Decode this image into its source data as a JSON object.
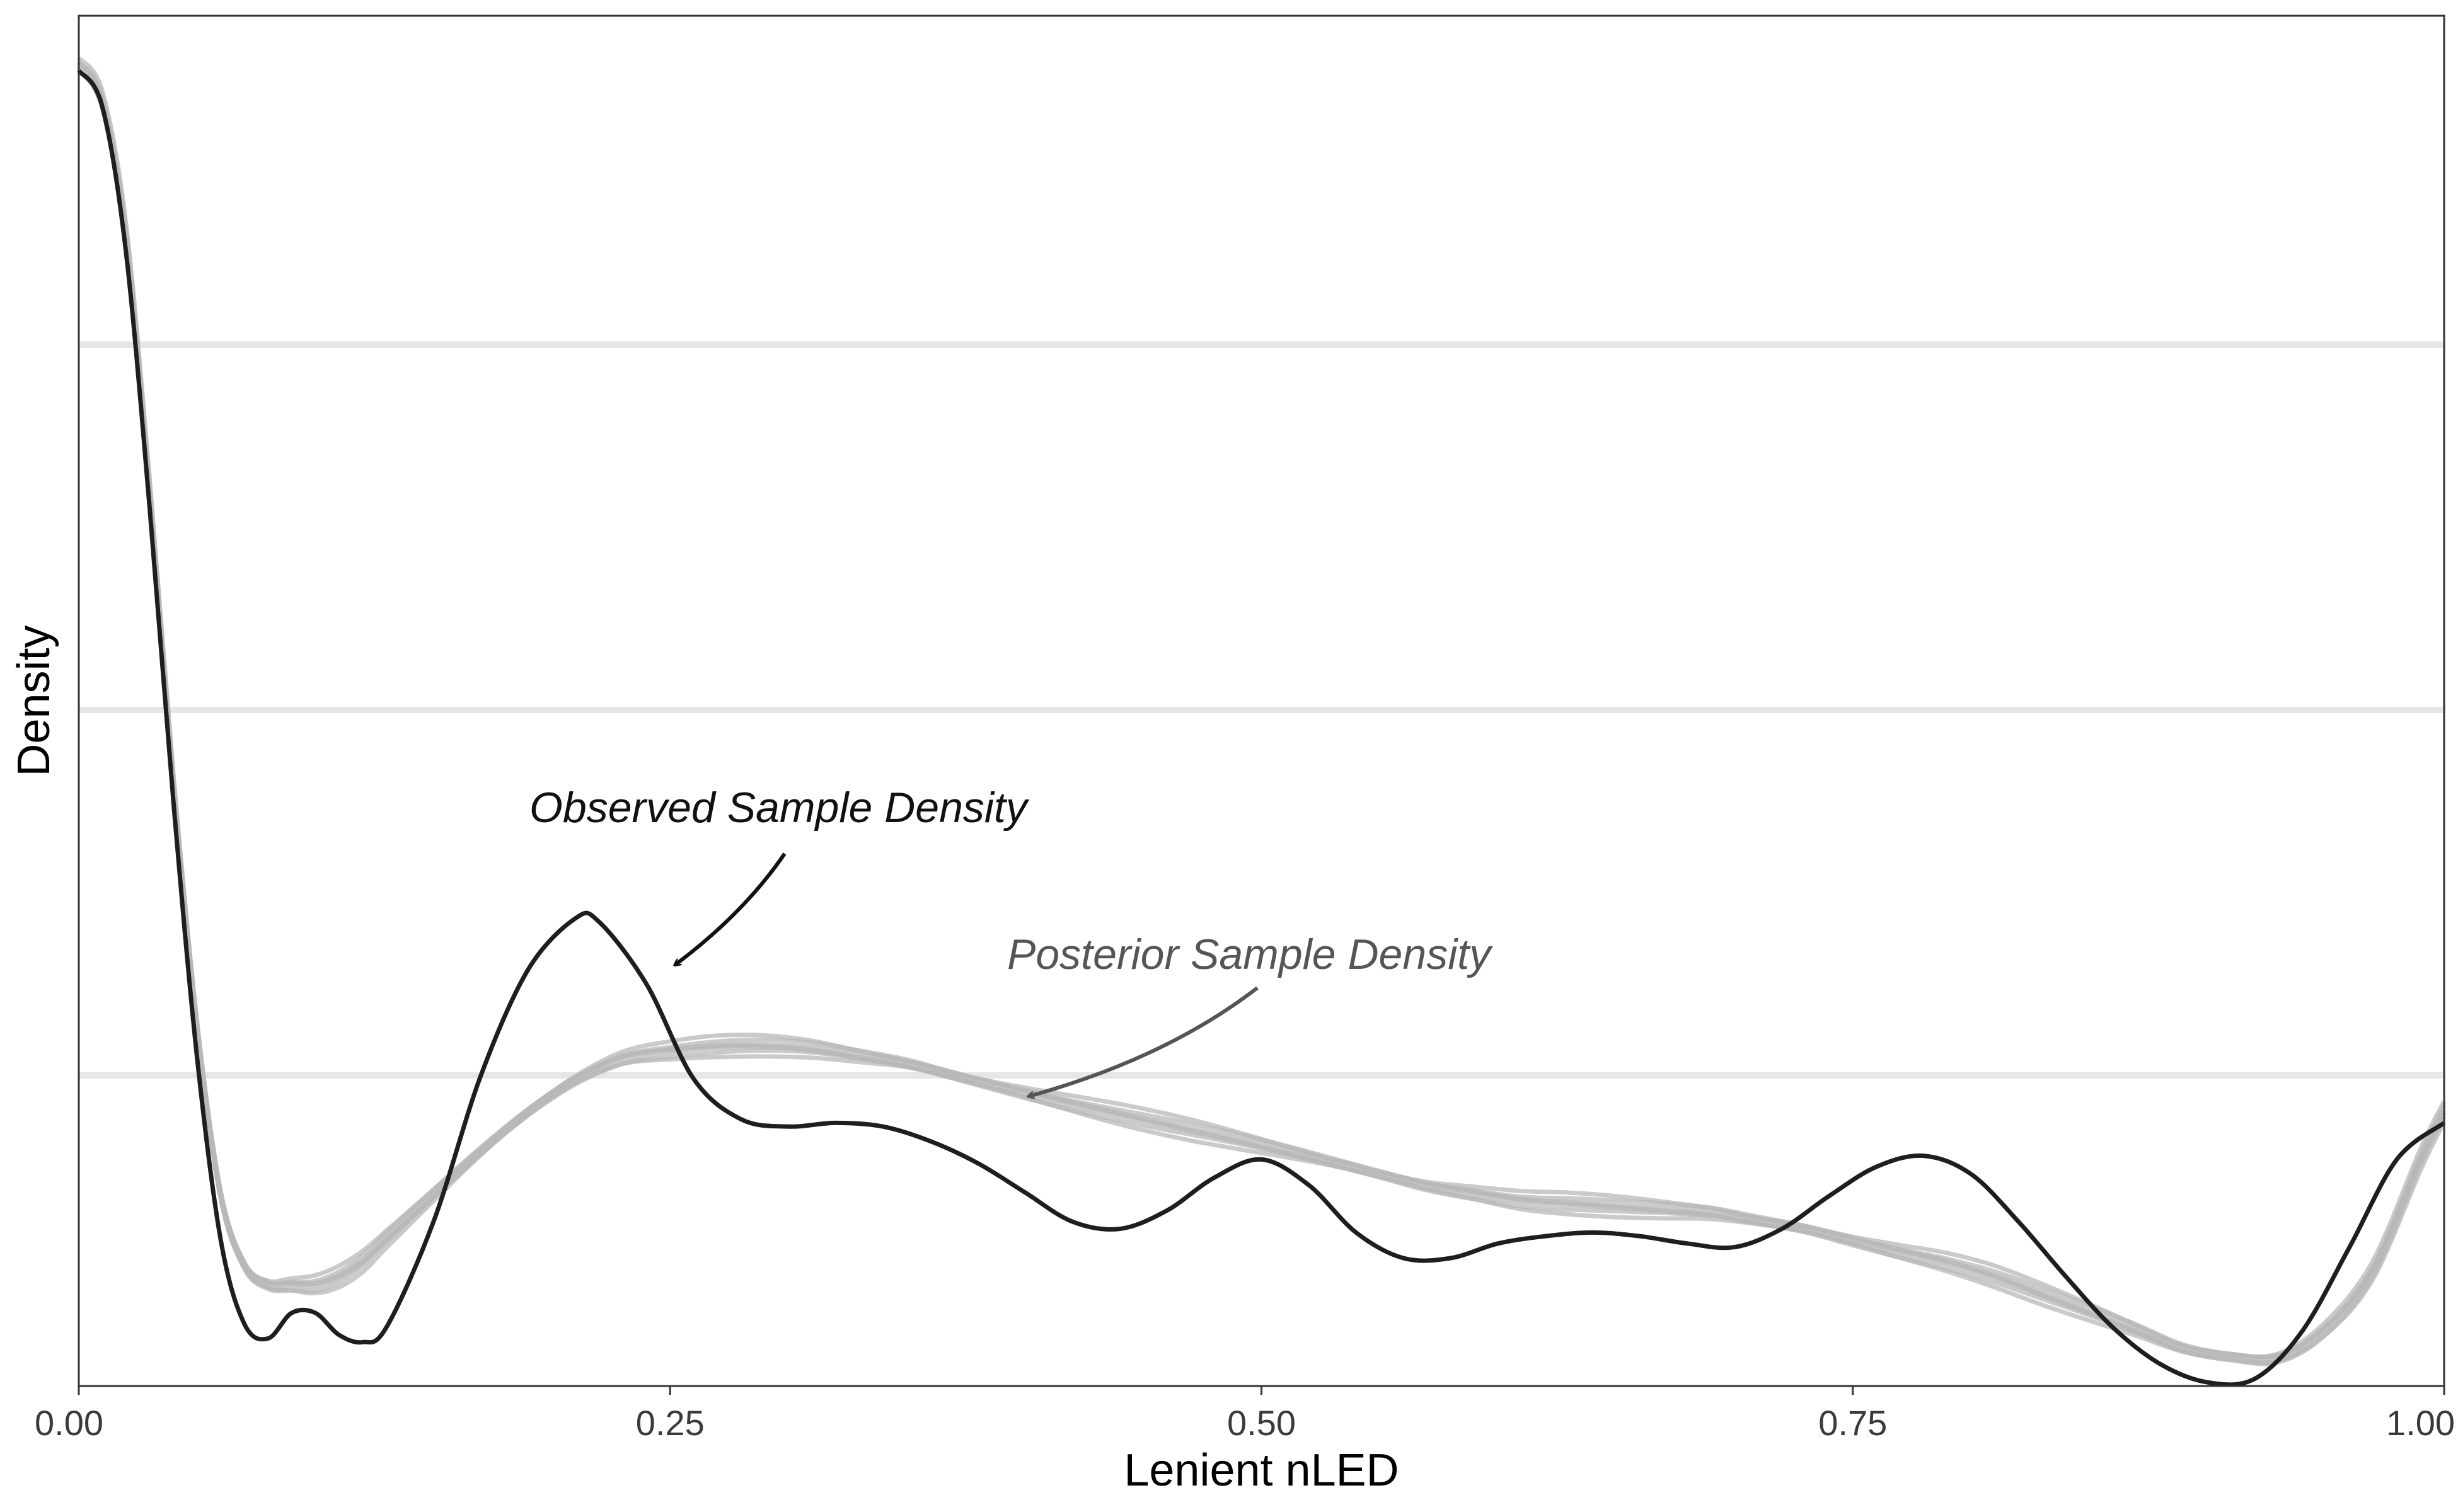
{
  "chart_data": {
    "type": "line",
    "title": "",
    "xlabel": "Lenient nLED",
    "ylabel": "Density",
    "xlim": [
      0,
      1
    ],
    "x_ticks": [
      "0.00",
      "0.25",
      "0.50",
      "0.75",
      "1.00"
    ],
    "y_ticks_shown": false,
    "grid": "horizontal-major",
    "legend": "none",
    "colors": {
      "observed": "#1e1e1e",
      "posterior": "#b8b8b8",
      "grid": "#e6e6e6",
      "posterior_label": "#555555"
    },
    "series": [
      {
        "kind": "observed",
        "x": [
          0.0,
          0.01,
          0.02,
          0.03,
          0.04,
          0.05,
          0.06,
          0.07,
          0.08,
          0.09,
          0.1,
          0.11,
          0.12,
          0.13,
          0.15,
          0.17,
          0.19,
          0.21,
          0.22,
          0.24,
          0.26,
          0.28,
          0.3,
          0.32,
          0.34,
          0.36,
          0.38,
          0.4,
          0.42,
          0.44,
          0.46,
          0.48,
          0.5,
          0.52,
          0.54,
          0.56,
          0.58,
          0.6,
          0.62,
          0.64,
          0.66,
          0.68,
          0.7,
          0.72,
          0.74,
          0.76,
          0.78,
          0.8,
          0.82,
          0.84,
          0.86,
          0.88,
          0.9,
          0.92,
          0.94,
          0.96,
          0.98,
          1.0
        ],
        "y": [
          3.6,
          3.5,
          3.1,
          2.4,
          1.6,
          0.9,
          0.4,
          0.17,
          0.13,
          0.2,
          0.2,
          0.14,
          0.12,
          0.16,
          0.45,
          0.85,
          1.14,
          1.28,
          1.27,
          1.1,
          0.84,
          0.73,
          0.71,
          0.72,
          0.71,
          0.67,
          0.61,
          0.53,
          0.45,
          0.43,
          0.48,
          0.57,
          0.62,
          0.55,
          0.42,
          0.35,
          0.35,
          0.39,
          0.41,
          0.42,
          0.41,
          0.39,
          0.38,
          0.43,
          0.52,
          0.6,
          0.63,
          0.58,
          0.45,
          0.3,
          0.16,
          0.06,
          0.01,
          0.02,
          0.15,
          0.38,
          0.62,
          0.72
        ]
      },
      {
        "kind": "posterior-samples",
        "x": [
          0.0,
          0.01,
          0.02,
          0.03,
          0.04,
          0.05,
          0.06,
          0.07,
          0.08,
          0.09,
          0.1,
          0.11,
          0.12,
          0.13,
          0.15,
          0.17,
          0.19,
          0.21,
          0.23,
          0.25,
          0.27,
          0.29,
          0.31,
          0.33,
          0.35,
          0.37,
          0.39,
          0.41,
          0.43,
          0.45,
          0.47,
          0.49,
          0.51,
          0.53,
          0.55,
          0.57,
          0.59,
          0.61,
          0.63,
          0.65,
          0.67,
          0.69,
          0.71,
          0.73,
          0.75,
          0.77,
          0.79,
          0.81,
          0.83,
          0.85,
          0.87,
          0.89,
          0.91,
          0.93,
          0.95,
          0.97,
          0.99,
          1.0
        ],
        "y": [
          3.62,
          3.52,
          3.15,
          2.45,
          1.65,
          0.98,
          0.52,
          0.33,
          0.28,
          0.28,
          0.28,
          0.3,
          0.34,
          0.4,
          0.52,
          0.64,
          0.75,
          0.84,
          0.9,
          0.92,
          0.93,
          0.93,
          0.92,
          0.9,
          0.88,
          0.85,
          0.82,
          0.79,
          0.76,
          0.73,
          0.7,
          0.67,
          0.64,
          0.61,
          0.58,
          0.55,
          0.53,
          0.51,
          0.5,
          0.49,
          0.48,
          0.47,
          0.45,
          0.43,
          0.4,
          0.37,
          0.34,
          0.3,
          0.25,
          0.2,
          0.15,
          0.1,
          0.08,
          0.08,
          0.16,
          0.32,
          0.62,
          0.75
        ],
        "band_spread": 0.03
      }
    ],
    "ylim": [
      0,
      3.75
    ],
    "y_gridlines": [
      0.85,
      1.85,
      2.85
    ],
    "annotations": [
      {
        "text": "Observed Sample Density",
        "arrow_to_x": 0.25,
        "arrow_to_y": 1.17
      },
      {
        "text": "Posterior Sample Density",
        "arrow_to_x": 0.4,
        "arrow_to_y": 0.81
      }
    ]
  }
}
